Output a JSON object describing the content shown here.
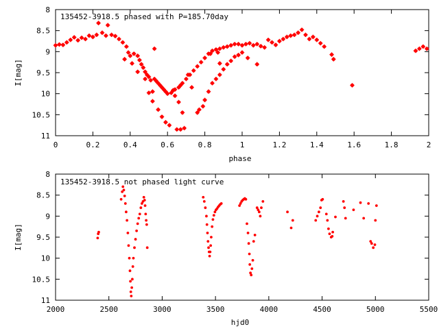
{
  "chart_data": [
    {
      "type": "scatter",
      "title": "135452-3918.5 phased with P=185.70day",
      "xlabel": "phase",
      "ylabel": "I[mag]",
      "xlim": [
        0,
        2
      ],
      "ylim": [
        8,
        11
      ],
      "y_inverted": true,
      "xticks": [
        0,
        0.2,
        0.4,
        0.6,
        0.8,
        1,
        1.2,
        1.4,
        1.6,
        1.8,
        2
      ],
      "xtick_labels": [
        "0",
        "0.2",
        "0.4",
        "0.6",
        "0.8",
        "1",
        "1.2",
        "1.4",
        "1.6",
        "1.8",
        "2"
      ],
      "yticks": [
        8,
        8.5,
        9,
        9.5,
        10,
        10.5,
        11
      ],
      "ytick_labels": [
        "8",
        "8.5",
        "9",
        "9.5",
        "10",
        "10.5",
        "11"
      ],
      "grid": false,
      "marker_color": "#ff0000",
      "points": [
        [
          0.0,
          8.85
        ],
        [
          0.02,
          8.83
        ],
        [
          0.04,
          8.84
        ],
        [
          0.06,
          8.78
        ],
        [
          0.08,
          8.72
        ],
        [
          0.1,
          8.66
        ],
        [
          0.12,
          8.73
        ],
        [
          0.14,
          8.67
        ],
        [
          0.16,
          8.7
        ],
        [
          0.18,
          8.62
        ],
        [
          0.2,
          8.65
        ],
        [
          0.22,
          8.6
        ],
        [
          0.23,
          8.32
        ],
        [
          0.25,
          8.55
        ],
        [
          0.27,
          8.62
        ],
        [
          0.28,
          8.37
        ],
        [
          0.3,
          8.6
        ],
        [
          0.32,
          8.63
        ],
        [
          0.34,
          8.7
        ],
        [
          0.36,
          8.78
        ],
        [
          0.38,
          8.88
        ],
        [
          0.39,
          9.02
        ],
        [
          0.4,
          9.1
        ],
        [
          0.41,
          9.28
        ],
        [
          0.42,
          9.05
        ],
        [
          0.44,
          9.1
        ],
        [
          0.45,
          9.2
        ],
        [
          0.46,
          9.3
        ],
        [
          0.47,
          9.38
        ],
        [
          0.48,
          9.48
        ],
        [
          0.49,
          9.55
        ],
        [
          0.5,
          9.6
        ],
        [
          0.51,
          9.68
        ],
        [
          0.52,
          9.95
        ],
        [
          0.53,
          9.65
        ],
        [
          0.54,
          9.7
        ],
        [
          0.55,
          9.75
        ],
        [
          0.56,
          9.8
        ],
        [
          0.57,
          9.85
        ],
        [
          0.58,
          9.9
        ],
        [
          0.59,
          9.95
        ],
        [
          0.6,
          10.0
        ],
        [
          0.62,
          9.98
        ],
        [
          0.63,
          9.92
        ],
        [
          0.64,
          9.9
        ],
        [
          0.66,
          9.85
        ],
        [
          0.67,
          9.8
        ],
        [
          0.68,
          9.75
        ],
        [
          0.7,
          9.65
        ],
        [
          0.72,
          9.55
        ],
        [
          0.74,
          9.45
        ],
        [
          0.76,
          9.35
        ],
        [
          0.78,
          9.25
        ],
        [
          0.8,
          9.15
        ],
        [
          0.82,
          9.05
        ],
        [
          0.84,
          8.98
        ],
        [
          0.86,
          8.95
        ],
        [
          0.88,
          8.93
        ],
        [
          0.9,
          8.9
        ],
        [
          0.92,
          8.88
        ],
        [
          0.94,
          8.85
        ],
        [
          0.96,
          8.82
        ],
        [
          0.98,
          8.82
        ],
        [
          1.0,
          8.85
        ],
        [
          1.02,
          8.82
        ],
        [
          1.04,
          8.8
        ],
        [
          1.06,
          8.85
        ],
        [
          1.08,
          8.82
        ],
        [
          1.1,
          8.87
        ],
        [
          1.12,
          8.9
        ],
        [
          1.14,
          8.72
        ],
        [
          1.16,
          8.78
        ],
        [
          1.18,
          8.84
        ],
        [
          1.2,
          8.75
        ],
        [
          1.22,
          8.7
        ],
        [
          1.24,
          8.65
        ],
        [
          1.26,
          8.62
        ],
        [
          1.28,
          8.6
        ],
        [
          1.3,
          8.55
        ],
        [
          1.32,
          8.48
        ],
        [
          1.34,
          8.6
        ],
        [
          1.36,
          8.7
        ],
        [
          1.38,
          8.65
        ],
        [
          1.4,
          8.72
        ],
        [
          1.42,
          8.8
        ],
        [
          1.44,
          8.88
        ],
        [
          1.48,
          9.07
        ],
        [
          1.49,
          9.18
        ],
        [
          1.59,
          9.8
        ],
        [
          1.93,
          8.98
        ],
        [
          1.95,
          8.93
        ],
        [
          1.97,
          8.88
        ],
        [
          1.99,
          8.93
        ],
        [
          0.37,
          9.18
        ],
        [
          0.44,
          9.48
        ],
        [
          0.48,
          9.65
        ],
        [
          0.5,
          9.98
        ],
        [
          0.52,
          10.18
        ],
        [
          0.55,
          10.38
        ],
        [
          0.57,
          10.55
        ],
        [
          0.59,
          10.68
        ],
        [
          0.61,
          10.75
        ],
        [
          0.65,
          10.85
        ],
        [
          0.67,
          10.85
        ],
        [
          0.69,
          10.82
        ],
        [
          0.64,
          10.05
        ],
        [
          0.66,
          10.2
        ],
        [
          0.68,
          10.45
        ],
        [
          0.76,
          10.45
        ],
        [
          0.77,
          10.38
        ],
        [
          0.79,
          10.3
        ],
        [
          0.8,
          10.15
        ],
        [
          0.82,
          9.95
        ],
        [
          0.84,
          9.75
        ],
        [
          0.86,
          9.65
        ],
        [
          0.88,
          9.55
        ],
        [
          0.9,
          9.42
        ],
        [
          0.92,
          9.3
        ],
        [
          0.94,
          9.22
        ],
        [
          0.96,
          9.12
        ],
        [
          0.98,
          9.08
        ],
        [
          1.0,
          9.02
        ],
        [
          0.53,
          8.93
        ],
        [
          0.71,
          9.55
        ],
        [
          0.73,
          9.85
        ],
        [
          0.83,
          9.05
        ],
        [
          0.87,
          9.02
        ],
        [
          1.03,
          9.15
        ],
        [
          1.08,
          9.3
        ],
        [
          0.88,
          9.28
        ]
      ]
    },
    {
      "type": "scatter",
      "title": "135452-3918.5 not phased light curve",
      "xlabel": "hjd0",
      "ylabel": "I[mag]",
      "xlim": [
        2000,
        5500
      ],
      "ylim": [
        8,
        11
      ],
      "y_inverted": true,
      "xticks": [
        2000,
        2500,
        3000,
        3500,
        4000,
        4500,
        5000,
        5500
      ],
      "xtick_labels": [
        "2000",
        "2500",
        "3000",
        "3500",
        "4000",
        "4500",
        "5000",
        "5500"
      ],
      "yticks": [
        8,
        8.5,
        9,
        9.5,
        10,
        10.5,
        11
      ],
      "ytick_labels": [
        "8",
        "8.5",
        "9",
        "9.5",
        "10",
        "10.5",
        "11"
      ],
      "grid": false,
      "marker_color": "#ff0000",
      "points": [
        [
          2395,
          9.52
        ],
        [
          2400,
          9.42
        ],
        [
          2405,
          9.38
        ],
        [
          2615,
          8.6
        ],
        [
          2625,
          8.42
        ],
        [
          2632,
          8.3
        ],
        [
          2640,
          8.38
        ],
        [
          2648,
          8.52
        ],
        [
          2655,
          8.7
        ],
        [
          2662,
          8.9
        ],
        [
          2670,
          9.1
        ],
        [
          2678,
          9.4
        ],
        [
          2685,
          9.7
        ],
        [
          2692,
          10.0
        ],
        [
          2698,
          10.3
        ],
        [
          2702,
          10.55
        ],
        [
          2706,
          10.8
        ],
        [
          2710,
          10.9
        ],
        [
          2715,
          10.7
        ],
        [
          2720,
          10.5
        ],
        [
          2725,
          10.2
        ],
        [
          2730,
          10.0
        ],
        [
          2740,
          9.75
        ],
        [
          2750,
          9.55
        ],
        [
          2760,
          9.35
        ],
        [
          2770,
          9.18
        ],
        [
          2780,
          9.05
        ],
        [
          2790,
          8.95
        ],
        [
          2800,
          8.8
        ],
        [
          2810,
          8.7
        ],
        [
          2820,
          8.65
        ],
        [
          2828,
          8.55
        ],
        [
          2835,
          8.62
        ],
        [
          2840,
          8.75
        ],
        [
          2845,
          8.95
        ],
        [
          2850,
          9.1
        ],
        [
          2855,
          9.2
        ],
        [
          2860,
          9.75
        ],
        [
          3385,
          8.55
        ],
        [
          3395,
          8.65
        ],
        [
          3405,
          8.8
        ],
        [
          3415,
          9.0
        ],
        [
          3420,
          9.2
        ],
        [
          3425,
          9.4
        ],
        [
          3430,
          9.6
        ],
        [
          3435,
          9.75
        ],
        [
          3440,
          9.85
        ],
        [
          3445,
          9.95
        ],
        [
          3450,
          9.85
        ],
        [
          3455,
          9.7
        ],
        [
          3460,
          9.5
        ],
        [
          3468,
          9.25
        ],
        [
          3476,
          9.08
        ],
        [
          3485,
          8.98
        ],
        [
          3495,
          8.9
        ],
        [
          3505,
          8.85
        ],
        [
          3515,
          8.82
        ],
        [
          3525,
          8.78
        ],
        [
          3535,
          8.75
        ],
        [
          3545,
          8.72
        ],
        [
          3555,
          8.7
        ],
        [
          3725,
          8.75
        ],
        [
          3735,
          8.7
        ],
        [
          3745,
          8.65
        ],
        [
          3755,
          8.62
        ],
        [
          3765,
          8.6
        ],
        [
          3775,
          8.58
        ],
        [
          3785,
          8.6
        ],
        [
          3795,
          9.18
        ],
        [
          3805,
          9.4
        ],
        [
          3812,
          9.65
        ],
        [
          3818,
          9.9
        ],
        [
          3822,
          10.15
        ],
        [
          3828,
          10.35
        ],
        [
          3835,
          10.4
        ],
        [
          3842,
          10.25
        ],
        [
          3850,
          10.05
        ],
        [
          3858,
          9.6
        ],
        [
          3870,
          9.45
        ],
        [
          3890,
          8.8
        ],
        [
          3900,
          8.85
        ],
        [
          3910,
          8.9
        ],
        [
          3920,
          9.0
        ],
        [
          3930,
          8.8
        ],
        [
          3945,
          8.65
        ],
        [
          4175,
          8.9
        ],
        [
          4210,
          9.28
        ],
        [
          4225,
          9.1
        ],
        [
          4440,
          9.1
        ],
        [
          4455,
          9.0
        ],
        [
          4470,
          8.9
        ],
        [
          4485,
          8.8
        ],
        [
          4495,
          8.62
        ],
        [
          4505,
          8.6
        ],
        [
          4540,
          8.95
        ],
        [
          4550,
          9.1
        ],
        [
          4560,
          9.3
        ],
        [
          4570,
          9.42
        ],
        [
          4585,
          9.5
        ],
        [
          4595,
          9.48
        ],
        [
          4600,
          9.38
        ],
        [
          4625,
          9.02
        ],
        [
          4700,
          8.65
        ],
        [
          4710,
          8.8
        ],
        [
          4720,
          9.05
        ],
        [
          4795,
          8.85
        ],
        [
          4860,
          8.68
        ],
        [
          4890,
          9.05
        ],
        [
          4935,
          8.7
        ],
        [
          4955,
          9.6
        ],
        [
          4965,
          9.65
        ],
        [
          4980,
          9.75
        ],
        [
          4995,
          9.68
        ],
        [
          5000,
          9.1
        ],
        [
          5010,
          8.75
        ]
      ]
    }
  ]
}
